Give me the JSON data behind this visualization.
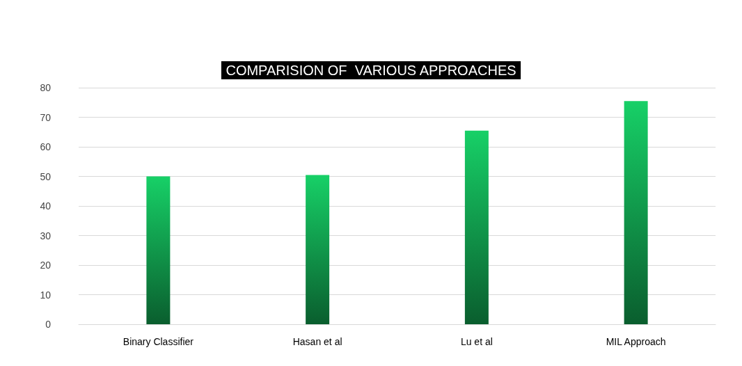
{
  "chart_data": {
    "type": "bar",
    "title": "COMPARISION OF  VARIOUS APPROACHES",
    "categories": [
      "Binary Classifier",
      "Hasan et al",
      "Lu et al",
      "MIL Approach"
    ],
    "values": [
      50,
      50.5,
      65.5,
      75.5
    ],
    "color": "#17d067",
    "ylim": [
      0,
      80
    ],
    "yticks": [
      0,
      10,
      20,
      30,
      40,
      50,
      60,
      70,
      80
    ],
    "grid": "y"
  }
}
